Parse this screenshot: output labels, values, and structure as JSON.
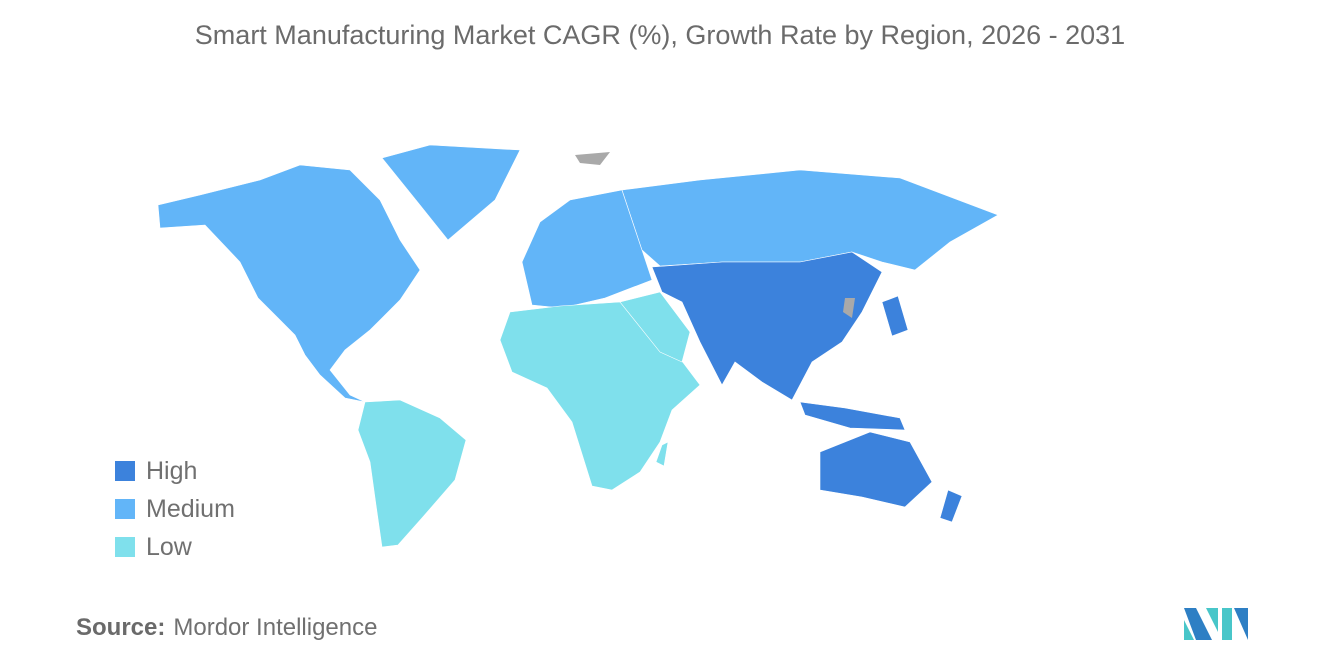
{
  "title": "Smart Manufacturing Market CAGR (%), Growth Rate by Region, 2026 - 2031",
  "legend": [
    {
      "label": "High",
      "color": "#3c82dc"
    },
    {
      "label": "Medium",
      "color": "#62b5f8"
    },
    {
      "label": "Low",
      "color": "#7fe0ec"
    }
  ],
  "regions": {
    "north_america": "Medium",
    "europe": "Medium",
    "russia": "Medium",
    "asia_pacific": "High",
    "south_america": "Low",
    "africa": "Low",
    "middle_east": "Low"
  },
  "no_data_color": "#a9a9a9",
  "source": {
    "label": "Source:",
    "value": "Mordor Intelligence"
  },
  "logo_colors": [
    "#2e7fc4",
    "#48c6c9"
  ]
}
